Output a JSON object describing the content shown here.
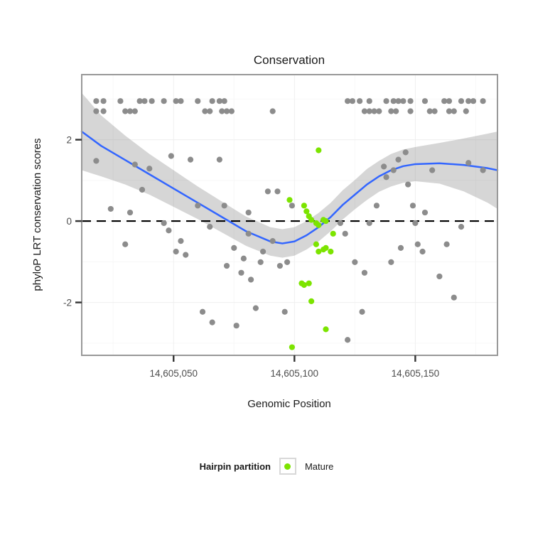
{
  "chart_data": {
    "type": "scatter",
    "title": "Conservation",
    "xlabel": "Genomic Position",
    "ylabel": "phyloP LRT conservation scores",
    "xlim": [
      14605012,
      14605184
    ],
    "ylim": [
      -3.3,
      3.6
    ],
    "grid": true,
    "legend_position": "bottom",
    "x_ticks": {
      "values": [
        14605050,
        14605100,
        14605150
      ],
      "labels": [
        "14,605,050",
        "14,605,100",
        "14,605,150"
      ]
    },
    "y_ticks": {
      "values": [
        -2,
        0,
        2
      ],
      "labels": [
        "-2",
        "0",
        "2"
      ]
    },
    "x_minor_ticks": [
      14605025,
      14605075,
      14605125,
      14605175
    ],
    "y_minor_ticks": [
      -3,
      -1,
      1,
      3
    ],
    "reference_line_y": 0,
    "legend": {
      "title": "Hairpin partition",
      "items": [
        {
          "label": "Mature",
          "color": "#7CE400"
        }
      ]
    },
    "smooth": {
      "color": "#3366FF",
      "ribbon_color": "#7F7F7F",
      "ribbon_opacity": 0.32,
      "x": [
        14605012,
        14605020,
        14605030,
        14605040,
        14605050,
        14605060,
        14605070,
        14605080,
        14605090,
        14605095,
        14605100,
        14605105,
        14605110,
        14605115,
        14605120,
        14605125,
        14605130,
        14605135,
        14605140,
        14605145,
        14605150,
        14605160,
        14605170,
        14605180,
        14605184
      ],
      "y": [
        2.2,
        1.85,
        1.5,
        1.15,
        0.8,
        0.45,
        0.1,
        -0.25,
        -0.5,
        -0.55,
        -0.5,
        -0.35,
        -0.15,
        0.1,
        0.4,
        0.65,
        0.9,
        1.1,
        1.25,
        1.35,
        1.4,
        1.42,
        1.38,
        1.3,
        1.25
      ],
      "upper": [
        3.15,
        2.6,
        2.1,
        1.65,
        1.25,
        0.85,
        0.48,
        0.11,
        -0.15,
        -0.2,
        -0.15,
        0.0,
        0.2,
        0.45,
        0.76,
        1.01,
        1.28,
        1.48,
        1.65,
        1.76,
        1.82,
        1.92,
        2.03,
        2.15,
        2.2
      ],
      "lower": [
        1.25,
        1.1,
        0.9,
        0.65,
        0.35,
        0.05,
        -0.28,
        -0.61,
        -0.85,
        -0.9,
        -0.85,
        -0.7,
        -0.5,
        -0.25,
        0.04,
        0.29,
        0.52,
        0.72,
        0.85,
        0.94,
        0.98,
        0.92,
        0.73,
        0.45,
        0.3
      ]
    },
    "series": [
      {
        "name": "Other",
        "color": "#8C8C8C",
        "points": [
          [
            14605018,
            2.95
          ],
          [
            14605021,
            2.95
          ],
          [
            14605028,
            2.95
          ],
          [
            14605036,
            2.95
          ],
          [
            14605038,
            2.95
          ],
          [
            14605041,
            2.95
          ],
          [
            14605046,
            2.95
          ],
          [
            14605051,
            2.95
          ],
          [
            14605053,
            2.95
          ],
          [
            14605060,
            2.95
          ],
          [
            14605066,
            2.95
          ],
          [
            14605069,
            2.95
          ],
          [
            14605071,
            2.95
          ],
          [
            14605122,
            2.95
          ],
          [
            14605124,
            2.95
          ],
          [
            14605127,
            2.95
          ],
          [
            14605131,
            2.95
          ],
          [
            14605138,
            2.95
          ],
          [
            14605141,
            2.95
          ],
          [
            14605143,
            2.95
          ],
          [
            14605145,
            2.95
          ],
          [
            14605148,
            2.95
          ],
          [
            14605154,
            2.95
          ],
          [
            14605162,
            2.95
          ],
          [
            14605164,
            2.95
          ],
          [
            14605169,
            2.95
          ],
          [
            14605172,
            2.95
          ],
          [
            14605174,
            2.95
          ],
          [
            14605178,
            2.95
          ],
          [
            14605018,
            2.7
          ],
          [
            14605021,
            2.7
          ],
          [
            14605030,
            2.7
          ],
          [
            14605032,
            2.7
          ],
          [
            14605034,
            2.7
          ],
          [
            14605063,
            2.7
          ],
          [
            14605065,
            2.7
          ],
          [
            14605070,
            2.7
          ],
          [
            14605072,
            2.7
          ],
          [
            14605074,
            2.7
          ],
          [
            14605091,
            2.7
          ],
          [
            14605129,
            2.7
          ],
          [
            14605131,
            2.7
          ],
          [
            14605133,
            2.7
          ],
          [
            14605135,
            2.7
          ],
          [
            14605140,
            2.7
          ],
          [
            14605142,
            2.7
          ],
          [
            14605148,
            2.7
          ],
          [
            14605156,
            2.7
          ],
          [
            14605158,
            2.7
          ],
          [
            14605164,
            2.7
          ],
          [
            14605166,
            2.7
          ],
          [
            14605171,
            2.7
          ],
          [
            14605018,
            1.48
          ],
          [
            14605024,
            0.3
          ],
          [
            14605030,
            -0.57
          ],
          [
            14605032,
            0.21
          ],
          [
            14605034,
            1.39
          ],
          [
            14605037,
            0.77
          ],
          [
            14605040,
            1.29
          ],
          [
            14605046,
            -0.05
          ],
          [
            14605048,
            -0.23
          ],
          [
            14605049,
            1.6
          ],
          [
            14605051,
            -0.75
          ],
          [
            14605053,
            -0.49
          ],
          [
            14605055,
            -0.83
          ],
          [
            14605057,
            1.51
          ],
          [
            14605060,
            0.38
          ],
          [
            14605062,
            -2.23
          ],
          [
            14605065,
            -0.14
          ],
          [
            14605066,
            -2.49
          ],
          [
            14605069,
            1.51
          ],
          [
            14605071,
            0.38
          ],
          [
            14605072,
            -1.1
          ],
          [
            14605075,
            -0.66
          ],
          [
            14605076,
            -2.57
          ],
          [
            14605078,
            -1.27
          ],
          [
            14605079,
            -0.92
          ],
          [
            14605081,
            -0.31
          ],
          [
            14605081,
            0.21
          ],
          [
            14605082,
            -1.44
          ],
          [
            14605084,
            -2.14
          ],
          [
            14605086,
            -1.01
          ],
          [
            14605087,
            -0.75
          ],
          [
            14605089,
            0.73
          ],
          [
            14605091,
            -0.49
          ],
          [
            14605093,
            0.73
          ],
          [
            14605094,
            -1.1
          ],
          [
            14605096,
            -2.23
          ],
          [
            14605097,
            -1.01
          ],
          [
            14605099,
            0.38
          ],
          [
            14605119,
            -0.05
          ],
          [
            14605121,
            -0.31
          ],
          [
            14605122,
            -2.92
          ],
          [
            14605125,
            -1.01
          ],
          [
            14605128,
            -2.23
          ],
          [
            14605129,
            -1.27
          ],
          [
            14605131,
            -0.05
          ],
          [
            14605134,
            0.38
          ],
          [
            14605137,
            1.34
          ],
          [
            14605138,
            1.08
          ],
          [
            14605140,
            -1.01
          ],
          [
            14605141,
            1.25
          ],
          [
            14605143,
            1.51
          ],
          [
            14605144,
            -0.66
          ],
          [
            14605146,
            1.69
          ],
          [
            14605147,
            0.9
          ],
          [
            14605149,
            0.38
          ],
          [
            14605150,
            -0.05
          ],
          [
            14605151,
            -0.57
          ],
          [
            14605153,
            -0.75
          ],
          [
            14605154,
            0.21
          ],
          [
            14605157,
            1.25
          ],
          [
            14605160,
            -1.36
          ],
          [
            14605163,
            -0.57
          ],
          [
            14605166,
            -1.88
          ],
          [
            14605169,
            -0.14
          ],
          [
            14605172,
            1.43
          ],
          [
            14605178,
            1.25
          ]
        ]
      },
      {
        "name": "Mature",
        "color": "#7CE400",
        "points": [
          [
            14605098,
            0.52
          ],
          [
            14605104,
            0.38
          ],
          [
            14605105,
            0.24
          ],
          [
            14605106,
            0.12
          ],
          [
            14605107,
            0.03
          ],
          [
            14605109,
            -0.05
          ],
          [
            14605110,
            1.74
          ],
          [
            14605110,
            -0.1
          ],
          [
            14605112,
            0.03
          ],
          [
            14605113,
            0.0
          ],
          [
            14605109,
            -0.57
          ],
          [
            14605110,
            -0.75
          ],
          [
            14605112,
            -0.7
          ],
          [
            14605113,
            -0.66
          ],
          [
            14605115,
            -0.75
          ],
          [
            14605116,
            -0.31
          ],
          [
            14605103,
            -1.53
          ],
          [
            14605104,
            -1.57
          ],
          [
            14605106,
            -1.53
          ],
          [
            14605107,
            -1.97
          ],
          [
            14605113,
            -2.66
          ],
          [
            14605099,
            -3.1
          ]
        ]
      }
    ]
  }
}
